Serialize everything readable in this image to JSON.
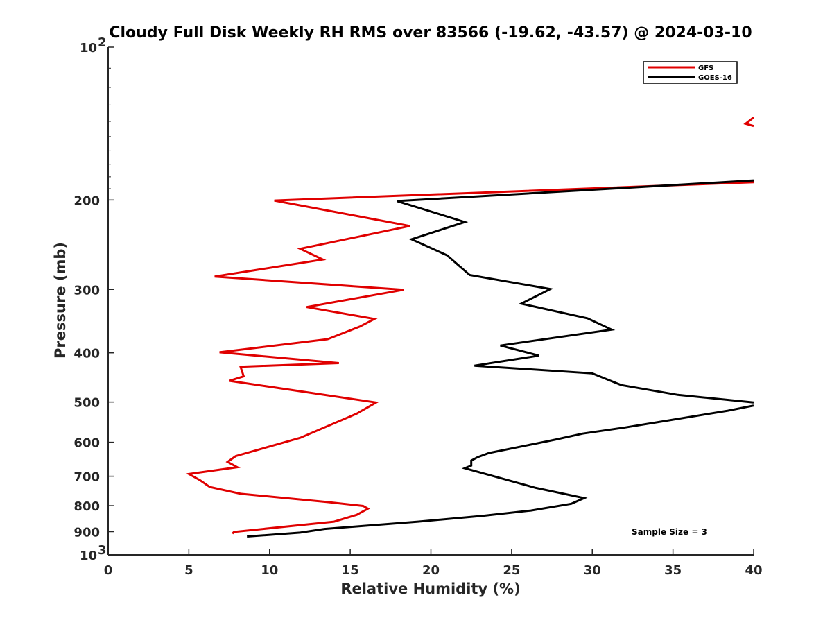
{
  "chart_data": {
    "type": "line",
    "title": "Cloudy Full Disk Weekly RH RMS over 83566 (-19.62, -43.57) @ 2024-03-10",
    "xlabel": "Relative Humidity (%)",
    "ylabel": "Pressure (mb)",
    "xlim": [
      0,
      40
    ],
    "ylim": [
      100,
      1000
    ],
    "yscale": "log",
    "y_reversed": true,
    "x_ticks": [
      "0",
      "5",
      "10",
      "15",
      "20",
      "25",
      "30",
      "35",
      "40"
    ],
    "y_ticks": [
      {
        "value": 100,
        "label": "10",
        "exp": "2"
      },
      {
        "value": 200,
        "label": "200"
      },
      {
        "value": 300,
        "label": "300"
      },
      {
        "value": 400,
        "label": "400"
      },
      {
        "value": 500,
        "label": "500"
      },
      {
        "value": 600,
        "label": "600"
      },
      {
        "value": 700,
        "label": "700"
      },
      {
        "value": 800,
        "label": "800"
      },
      {
        "value": 900,
        "label": "900"
      },
      {
        "value": 1000,
        "label": "10",
        "exp": "3"
      }
    ],
    "legend_position": "top-right",
    "grid": false,
    "annotation": "Sample Size = 3",
    "series": [
      {
        "name": "GFS",
        "color": "#e00000",
        "segments": [
          [
            [
              40.0,
              137.5
            ],
            [
              39.5,
              141.5
            ],
            [
              40.0,
              143.0
            ]
          ],
          [
            [
              40.0,
              184.5
            ],
            [
              10.3,
              200.5
            ],
            [
              18.7,
              225.0
            ],
            [
              11.9,
              249.5
            ],
            [
              13.3,
              262.0
            ],
            [
              6.6,
              283.0
            ],
            [
              18.3,
              300.5
            ],
            [
              12.3,
              325.0
            ],
            [
              16.5,
              343.0
            ],
            [
              15.6,
              355.0
            ],
            [
              13.6,
              376.0
            ],
            [
              6.9,
              399.0
            ],
            [
              14.3,
              419.0
            ],
            [
              8.2,
              426.0
            ],
            [
              8.4,
              445.0
            ],
            [
              7.5,
              454.0
            ],
            [
              16.6,
              501.0
            ],
            [
              15.4,
              527.0
            ],
            [
              11.9,
              588.0
            ],
            [
              7.9,
              639.0
            ],
            [
              7.4,
              656.0
            ],
            [
              8.0,
              672.0
            ],
            [
              5.0,
              693.0
            ],
            [
              5.7,
              713.0
            ],
            [
              6.3,
              735.0
            ],
            [
              8.2,
              758.0
            ],
            [
              13.6,
              787.0
            ],
            [
              15.8,
              801.0
            ],
            [
              16.1,
              811.0
            ],
            [
              15.4,
              834.0
            ],
            [
              14.0,
              860.0
            ],
            [
              7.8,
              901.0
            ],
            [
              7.7,
              908.0
            ]
          ]
        ]
      },
      {
        "name": "GOES-16",
        "color": "#000000",
        "segments": [
          [
            [
              40.0,
              183.0
            ],
            [
              17.9,
              201.0
            ],
            [
              22.1,
              221.0
            ],
            [
              18.8,
              239.0
            ],
            [
              21.0,
              257.0
            ],
            [
              22.4,
              281.0
            ],
            [
              27.4,
              299.5
            ],
            [
              25.6,
              320.0
            ],
            [
              29.7,
              342.0
            ],
            [
              31.2,
              360.0
            ],
            [
              24.3,
              387.0
            ],
            [
              26.7,
              405.0
            ],
            [
              22.7,
              424.0
            ],
            [
              30.0,
              439.0
            ],
            [
              31.8,
              463.0
            ],
            [
              35.3,
              484.0
            ],
            [
              40.0,
              501.0
            ]
          ],
          [
            [
              40.0,
              508.0
            ],
            [
              38.4,
              520.0
            ],
            [
              34.5,
              545.0
            ],
            [
              31.9,
              562.0
            ],
            [
              29.4,
              577.0
            ],
            [
              27.7,
              593.0
            ],
            [
              23.6,
              630.0
            ],
            [
              22.9,
              642.0
            ],
            [
              22.5,
              652.0
            ],
            [
              22.5,
              667.0
            ],
            [
              22.1,
              675.0
            ],
            [
              26.5,
              738.0
            ],
            [
              29.5,
              773.0
            ],
            [
              28.7,
              793.0
            ],
            [
              26.2,
              818.0
            ],
            [
              23.2,
              838.0
            ],
            [
              19.2,
              860.0
            ],
            [
              13.4,
              889.0
            ],
            [
              11.9,
              904.0
            ],
            [
              8.6,
              920.0
            ]
          ]
        ]
      }
    ]
  }
}
